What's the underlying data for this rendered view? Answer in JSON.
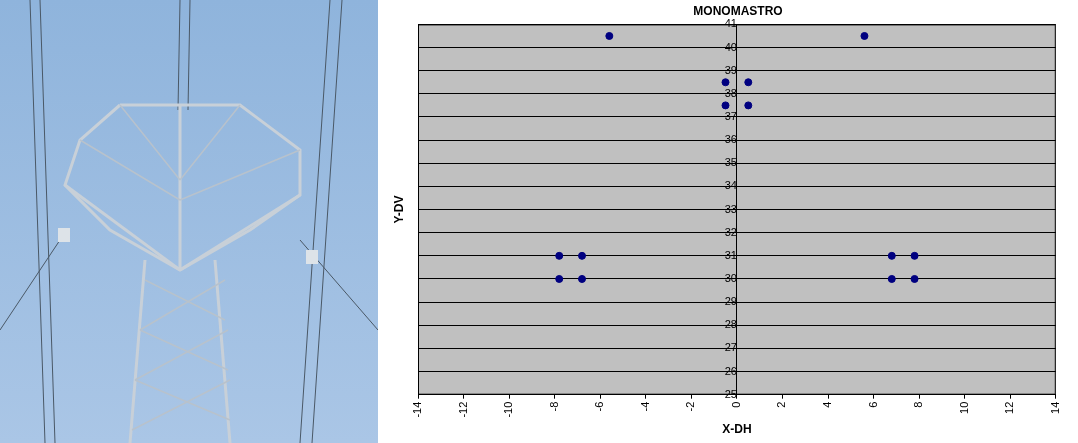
{
  "chart_data": {
    "type": "scatter",
    "title": "MONOMASTRO",
    "x_label": "X-DH",
    "y_label": "Y-DV",
    "x": [
      -5.6,
      5.6,
      -0.5,
      0.5,
      -0.5,
      0.5,
      -7.8,
      -6.8,
      -7.8,
      -6.8,
      6.8,
      7.8,
      6.8,
      7.8
    ],
    "values": [
      40.5,
      40.5,
      38.5,
      38.5,
      37.5,
      37.5,
      31,
      31,
      30,
      30,
      31,
      31,
      30,
      30
    ],
    "color": "#000080",
    "marker": "circle",
    "xlim": [
      -14,
      14
    ],
    "xticks": [
      -14,
      -12,
      -10,
      -8,
      -6,
      -4,
      -2,
      0,
      2,
      4,
      6,
      8,
      10,
      12,
      14
    ],
    "ylim": [
      25,
      41
    ],
    "yticks": [
      25,
      26,
      27,
      28,
      29,
      30,
      31,
      32,
      33,
      34,
      35,
      36,
      37,
      38,
      39,
      40,
      41
    ],
    "grid": true
  }
}
